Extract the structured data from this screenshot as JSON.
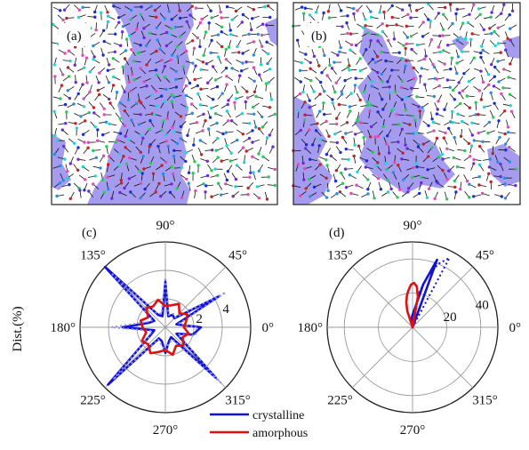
{
  "figure": {
    "panels": {
      "a": {
        "label": "(a)"
      },
      "b": {
        "label": "(b)"
      },
      "c": {
        "label": "(c)"
      },
      "d": {
        "label": "(d)"
      }
    },
    "ylabel": "Dist.(%)",
    "angle_labels": [
      "90°",
      "45°",
      "0°",
      "315°",
      "270°",
      "225°",
      "180°",
      "135°"
    ],
    "colors": {
      "crystalline": "#1212d6",
      "amorphous": "#e01010",
      "domain_fill": "#a59cf0",
      "outline": "#222222"
    }
  },
  "chart_data": [
    {
      "type": "line",
      "subtype": "polar",
      "panel": "(c)",
      "radial_ticks": [
        2,
        4
      ],
      "radial_tick_labels": [
        "2",
        "4"
      ],
      "rmax": 6,
      "angle_ticks": [
        0,
        45,
        90,
        135,
        180,
        225,
        270,
        315
      ],
      "series": [
        {
          "name": "crystalline",
          "style": "solid",
          "theta": [
            0,
            15,
            30,
            45,
            60,
            75,
            90,
            105,
            120,
            135,
            150,
            165,
            180,
            195,
            210,
            225,
            240,
            255,
            270,
            285,
            300,
            315,
            330,
            345
          ],
          "r": [
            2.5,
            0.8,
            4.3,
            0.9,
            1.0,
            0.8,
            3.2,
            0.8,
            1.0,
            6.0,
            0.9,
            1.2,
            3.0,
            0.8,
            1.3,
            5.7,
            0.9,
            1.0,
            1.8,
            1.0,
            0.8,
            5.0,
            0.9,
            2.0
          ]
        },
        {
          "name": "crystalline",
          "style": "dotted",
          "theta": [
            0,
            15,
            30,
            45,
            60,
            75,
            90,
            105,
            120,
            135,
            150,
            165,
            180,
            195,
            210,
            225,
            240,
            255,
            270,
            285,
            300,
            315,
            330,
            345
          ],
          "r": [
            2.2,
            1.0,
            4.9,
            1.0,
            1.1,
            0.9,
            3.5,
            1.0,
            1.1,
            5.4,
            1.0,
            1.4,
            3.8,
            1.0,
            1.3,
            5.2,
            1.0,
            1.2,
            1.6,
            1.1,
            1.0,
            5.5,
            1.0,
            2.2
          ]
        },
        {
          "name": "amorphous",
          "style": "solid",
          "theta": [
            0,
            15,
            30,
            45,
            60,
            75,
            90,
            105,
            120,
            135,
            150,
            165,
            180,
            195,
            210,
            225,
            240,
            255,
            270,
            285,
            300,
            315,
            330,
            345
          ],
          "r": [
            1.3,
            1.5,
            1.8,
            1.4,
            1.9,
            1.6,
            1.5,
            2.0,
            1.7,
            1.9,
            1.4,
            1.8,
            1.6,
            1.4,
            1.9,
            1.7,
            2.1,
            1.8,
            1.6,
            2.0,
            1.5,
            1.8,
            1.4,
            1.7
          ]
        }
      ]
    },
    {
      "type": "line",
      "subtype": "polar",
      "panel": "(d)",
      "radial_ticks": [
        20,
        40
      ],
      "radial_tick_labels": [
        "20",
        "40"
      ],
      "rmax": 50,
      "angle_ticks": [
        0,
        45,
        90,
        135,
        180,
        225,
        270,
        315
      ],
      "series": [
        {
          "name": "crystalline",
          "style": "solid",
          "theta": [
            70,
            76,
            82,
            88,
            94
          ],
          "r": [
            42,
            26,
            12,
            8,
            6
          ]
        },
        {
          "name": "crystalline",
          "style": "dotted",
          "theta": [
            62,
            68,
            74,
            80
          ],
          "r": [
            46,
            40,
            30,
            20
          ]
        },
        {
          "name": "amorphous",
          "style": "solid",
          "theta": [
            80,
            84,
            88,
            92,
            96,
            100,
            104,
            108
          ],
          "r": [
            18,
            24,
            26,
            25,
            22,
            19,
            15,
            10
          ]
        }
      ]
    }
  ],
  "legend": {
    "items": [
      {
        "label": "crystalline",
        "color": "#1212d6"
      },
      {
        "label": "amorphous",
        "color": "#e01010"
      }
    ]
  }
}
